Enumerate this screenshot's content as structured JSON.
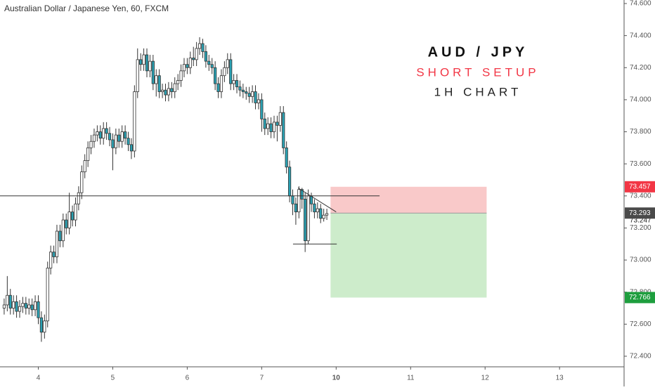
{
  "chart_data": {
    "type": "candlestick",
    "title": "Australian Dollar / Japanese Yen, 60, FXCM",
    "up_color": "#ffffff",
    "down_color": "#2aa1b3",
    "wick_color": "#333333",
    "xlim": [
      -12.343,
      188.8
    ],
    "ylim": [
      72.334,
      74.622
    ],
    "xticks": [
      {
        "value": 0,
        "label": "4"
      },
      {
        "value": 24,
        "label": "5"
      },
      {
        "value": 48,
        "label": "6"
      },
      {
        "value": 72,
        "label": "7"
      },
      {
        "value": 96,
        "label": "10"
      },
      {
        "value": 120,
        "label": "11"
      },
      {
        "value": 144,
        "label": "12"
      },
      {
        "value": 168,
        "label": "13"
      }
    ],
    "yticks": [
      {
        "value": 74.6,
        "label": "74.600"
      },
      {
        "value": 74.4,
        "label": "74.400"
      },
      {
        "value": 74.2,
        "label": "74.200"
      },
      {
        "value": 74.0,
        "label": "74.000"
      },
      {
        "value": 73.8,
        "label": "73.800"
      },
      {
        "value": 73.6,
        "label": "73.600"
      },
      {
        "value": 73.4,
        "label": "73.400"
      },
      {
        "value": 73.2,
        "label": "73.200"
      },
      {
        "value": 73.0,
        "label": "73.000"
      },
      {
        "value": 72.8,
        "label": "72.800"
      },
      {
        "value": 72.6,
        "label": "72.600"
      },
      {
        "value": 72.4,
        "label": "72.400"
      }
    ],
    "x": [
      -11,
      -10,
      -9,
      -8,
      -7,
      -6,
      -5,
      -4,
      -3,
      -2,
      -1,
      0,
      1,
      2,
      3,
      4,
      5,
      6,
      7,
      8,
      9,
      10,
      11,
      12,
      13,
      14,
      15,
      16,
      17,
      18,
      19,
      20,
      21,
      22,
      23,
      24,
      25,
      26,
      27,
      28,
      29,
      30,
      31,
      32,
      33,
      34,
      35,
      36,
      37,
      38,
      39,
      40,
      41,
      42,
      43,
      44,
      45,
      46,
      47,
      48,
      49,
      50,
      51,
      52,
      53,
      54,
      55,
      56,
      57,
      58,
      59,
      60,
      61,
      62,
      63,
      64,
      65,
      66,
      67,
      68,
      69,
      70,
      71,
      72,
      73,
      74,
      75,
      76,
      77,
      78,
      79,
      80,
      81,
      82,
      83,
      84,
      85,
      86,
      87,
      88,
      89,
      90,
      91,
      92,
      93
    ],
    "open": [
      72.7,
      72.72,
      72.78,
      72.7,
      72.74,
      72.68,
      72.71,
      72.73,
      72.7,
      72.72,
      72.69,
      72.74,
      72.64,
      72.55,
      72.62,
      72.95,
      73.05,
      73.02,
      73.18,
      73.12,
      73.25,
      73.2,
      73.3,
      73.25,
      73.35,
      73.42,
      73.55,
      73.62,
      73.7,
      73.74,
      73.78,
      73.8,
      73.76,
      73.82,
      73.79,
      73.75,
      73.7,
      73.78,
      73.74,
      73.8,
      73.76,
      73.72,
      73.68,
      74.05,
      74.25,
      74.22,
      74.28,
      74.18,
      74.24,
      74.1,
      74.15,
      74.05,
      74.06,
      74.03,
      74.07,
      74.05,
      74.1,
      74.12,
      74.18,
      74.22,
      74.2,
      74.26,
      74.25,
      74.32,
      74.35,
      74.3,
      74.24,
      74.22,
      74.2,
      74.1,
      74.05,
      74.15,
      74.2,
      74.25,
      74.1,
      74.12,
      74.08,
      74.06,
      74.05,
      74.04,
      74.02,
      74.05,
      73.98,
      74.0,
      73.88,
      73.82,
      73.85,
      73.8,
      73.86,
      73.84,
      73.92,
      73.7,
      73.58,
      73.4,
      73.35,
      73.3,
      73.44,
      73.38,
      73.12,
      73.4,
      73.35,
      73.3,
      73.32,
      73.26,
      73.28
    ],
    "high": [
      72.76,
      72.9,
      72.82,
      72.78,
      72.78,
      72.75,
      72.77,
      72.77,
      72.76,
      72.76,
      72.78,
      72.78,
      72.68,
      72.66,
      72.99,
      73.09,
      73.09,
      73.22,
      73.22,
      73.29,
      73.29,
      73.42,
      73.34,
      73.39,
      73.46,
      73.59,
      73.66,
      73.74,
      73.78,
      73.82,
      73.84,
      73.84,
      73.86,
      73.86,
      73.83,
      73.79,
      73.82,
      73.82,
      73.84,
      73.84,
      73.8,
      73.76,
      74.09,
      74.32,
      74.29,
      74.32,
      74.32,
      74.28,
      74.28,
      74.19,
      74.19,
      74.1,
      74.1,
      74.11,
      74.11,
      74.14,
      74.16,
      74.22,
      74.26,
      74.26,
      74.3,
      74.33,
      74.36,
      74.39,
      74.38,
      74.34,
      74.28,
      74.26,
      74.24,
      74.14,
      74.19,
      74.24,
      74.29,
      74.29,
      74.16,
      74.16,
      74.12,
      74.1,
      74.08,
      74.08,
      74.09,
      74.09,
      74.04,
      74.04,
      73.92,
      73.89,
      73.89,
      73.9,
      73.9,
      73.96,
      73.96,
      73.74,
      73.62,
      73.44,
      73.39,
      73.46,
      73.45,
      73.42,
      73.44,
      73.42,
      73.38,
      73.36,
      73.35,
      73.32,
      73.32
    ],
    "low": [
      72.66,
      72.68,
      72.66,
      72.66,
      72.64,
      72.64,
      72.67,
      72.66,
      72.66,
      72.65,
      72.65,
      72.6,
      72.49,
      72.51,
      72.58,
      72.91,
      72.98,
      72.98,
      73.08,
      73.08,
      73.16,
      73.16,
      73.21,
      73.21,
      73.31,
      73.38,
      73.51,
      73.58,
      73.66,
      73.7,
      73.74,
      73.72,
      73.72,
      73.75,
      73.71,
      73.56,
      73.66,
      73.7,
      73.7,
      73.72,
      73.68,
      73.63,
      73.64,
      74.01,
      74.18,
      74.18,
      74.14,
      74.14,
      74.06,
      74.02,
      74.01,
      74.01,
      73.99,
      73.99,
      74.01,
      74.01,
      74.06,
      74.08,
      74.14,
      74.16,
      74.16,
      74.21,
      74.21,
      74.28,
      74.26,
      74.2,
      74.18,
      74.16,
      74.06,
      74.01,
      74.01,
      74.11,
      74.16,
      74.06,
      74.06,
      74.04,
      74.02,
      74.01,
      74.0,
      73.98,
      73.98,
      73.94,
      73.94,
      73.8,
      73.78,
      73.78,
      73.76,
      73.76,
      73.74,
      73.8,
      73.66,
      73.54,
      73.36,
      73.28,
      73.22,
      73.26,
      73.32,
      73.05,
      73.1,
      73.3,
      73.26,
      73.26,
      73.23,
      73.24,
      73.25
    ],
    "close": [
      72.72,
      72.78,
      72.7,
      72.74,
      72.68,
      72.71,
      72.73,
      72.7,
      72.72,
      72.69,
      72.74,
      72.64,
      72.55,
      72.62,
      72.95,
      73.05,
      73.02,
      73.18,
      73.12,
      73.25,
      73.2,
      73.3,
      73.25,
      73.35,
      73.42,
      73.55,
      73.62,
      73.7,
      73.74,
      73.78,
      73.8,
      73.76,
      73.82,
      73.79,
      73.75,
      73.7,
      73.78,
      73.74,
      73.8,
      73.76,
      73.72,
      73.68,
      74.05,
      74.25,
      74.22,
      74.28,
      74.18,
      74.24,
      74.1,
      74.15,
      74.05,
      74.06,
      74.03,
      74.07,
      74.05,
      74.1,
      74.12,
      74.18,
      74.22,
      74.2,
      74.26,
      74.25,
      74.32,
      74.35,
      74.3,
      74.24,
      74.22,
      74.2,
      74.1,
      74.05,
      74.15,
      74.2,
      74.25,
      74.1,
      74.12,
      74.08,
      74.06,
      74.05,
      74.04,
      74.02,
      74.05,
      73.98,
      74.0,
      73.88,
      73.82,
      73.85,
      73.8,
      73.86,
      73.84,
      73.92,
      73.7,
      73.58,
      73.4,
      73.35,
      73.3,
      73.44,
      73.38,
      73.12,
      73.4,
      73.35,
      73.3,
      73.32,
      73.26,
      73.28,
      73.29
    ],
    "lines": [
      {
        "x": [
          -12.343,
          110
        ],
        "y": [
          73.4,
          73.4
        ],
        "color": "#333333"
      },
      {
        "x": [
          82.1,
          96.2
        ],
        "y": [
          73.1,
          73.1
        ],
        "color": "#333333"
      },
      {
        "x": [
          83.7,
          96
        ],
        "y": [
          73.45,
          73.3
        ],
        "color": "#333333"
      }
    ],
    "position": {
      "x": [
        94.2,
        144.5
      ],
      "entry": 73.293,
      "stop": 73.457,
      "target": 72.766,
      "stop_color": "#f9c9c9",
      "target_color": "#cdeccb",
      "stop_label_color": "#f23645",
      "target_label_color": "#1e9e3e",
      "entry_label_color": "#4a4a4a"
    },
    "last_price": 73.247,
    "annotations": [
      {
        "text": "AUD / JPY",
        "color": "#111111"
      },
      {
        "text": "SHORT SETUP",
        "color": "#f23645"
      },
      {
        "text": "1H CHART",
        "color": "#222222"
      }
    ]
  }
}
